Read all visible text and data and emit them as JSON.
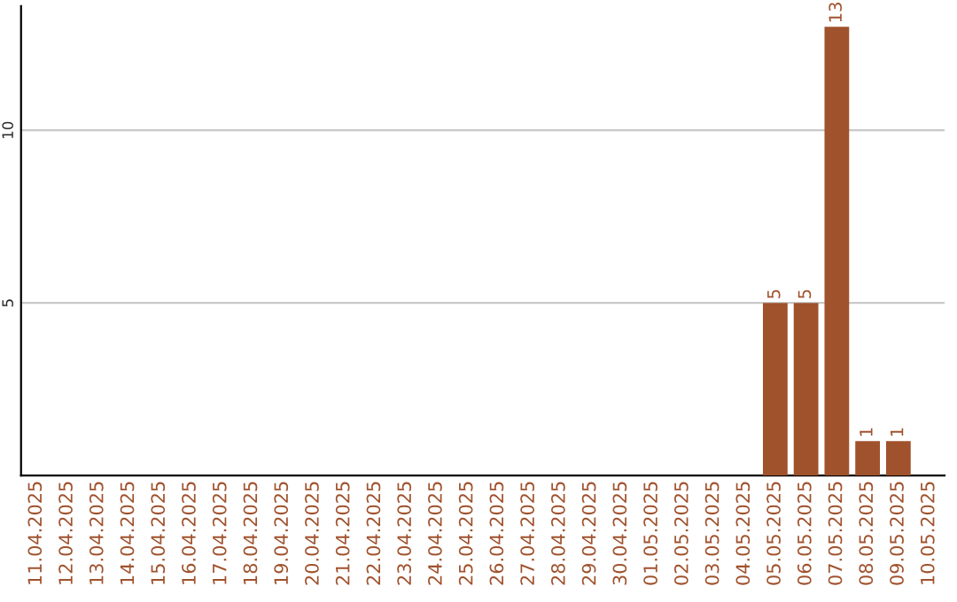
{
  "chart_data": {
    "type": "bar",
    "categories": [
      "11.04.2025",
      "12.04.2025",
      "13.04.2025",
      "14.04.2025",
      "15.04.2025",
      "16.04.2025",
      "17.04.2025",
      "18.04.2025",
      "19.04.2025",
      "20.04.2025",
      "21.04.2025",
      "22.04.2025",
      "23.04.2025",
      "24.04.2025",
      "25.04.2025",
      "26.04.2025",
      "27.04.2025",
      "28.04.2025",
      "29.04.2025",
      "30.04.2025",
      "01.05.2025",
      "02.05.2025",
      "03.05.2025",
      "04.05.2025",
      "05.05.2025",
      "06.05.2025",
      "07.05.2025",
      "08.05.2025",
      "09.05.2025",
      "10.05.2025"
    ],
    "series": [
      {
        "color": "#a0522d",
        "values": [
          null,
          null,
          null,
          null,
          null,
          null,
          null,
          null,
          null,
          null,
          null,
          null,
          null,
          null,
          null,
          null,
          null,
          null,
          null,
          null,
          null,
          null,
          null,
          null,
          5,
          5,
          13,
          1,
          1,
          null
        ],
        "value_labels": [
          null,
          null,
          null,
          null,
          null,
          null,
          null,
          null,
          null,
          null,
          null,
          null,
          null,
          null,
          null,
          null,
          null,
          null,
          null,
          null,
          null,
          null,
          null,
          null,
          "5",
          "5",
          "13",
          "1",
          "1",
          null
        ]
      }
    ],
    "ylim": [
      0,
      13.6
    ],
    "yticks": [
      5,
      10
    ],
    "grid": "y",
    "legend": false
  }
}
